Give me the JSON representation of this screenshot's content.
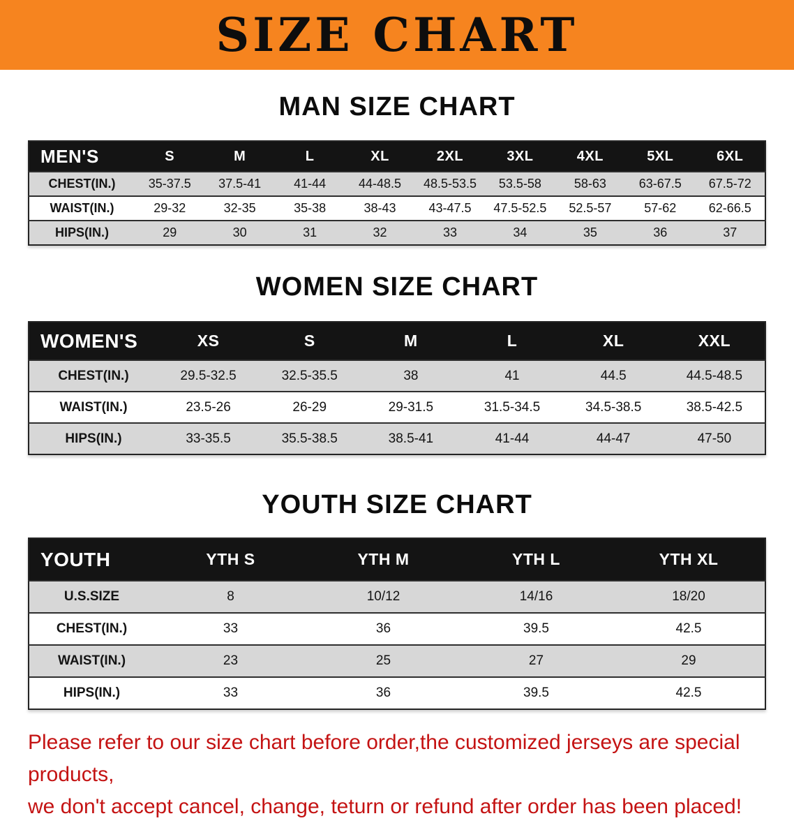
{
  "banner": {
    "title": "SIZE CHART",
    "bg_color": "#f6841f"
  },
  "sections": [
    {
      "id": "men",
      "heading": "MAN SIZE CHART",
      "table": {
        "header": [
          "MEN'S",
          "S",
          "M",
          "L",
          "XL",
          "2XL",
          "3XL",
          "4XL",
          "5XL",
          "6XL"
        ],
        "rows": [
          [
            "CHEST(IN.)",
            "35-37.5",
            "37.5-41",
            "41-44",
            "44-48.5",
            "48.5-53.5",
            "53.5-58",
            "58-63",
            "63-67.5",
            "67.5-72"
          ],
          [
            "WAIST(IN.)",
            "29-32",
            "32-35",
            "35-38",
            "38-43",
            "43-47.5",
            "47.5-52.5",
            "52.5-57",
            "57-62",
            "62-66.5"
          ],
          [
            "HIPS(IN.)",
            "29",
            "30",
            "31",
            "32",
            "33",
            "34",
            "35",
            "36",
            "37"
          ]
        ]
      }
    },
    {
      "id": "women",
      "heading": "WOMEN SIZE CHART",
      "table": {
        "header": [
          "WOMEN'S",
          "XS",
          "S",
          "M",
          "L",
          "XL",
          "XXL"
        ],
        "rows": [
          [
            "CHEST(IN.)",
            "29.5-32.5",
            "32.5-35.5",
            "38",
            "41",
            "44.5",
            "44.5-48.5"
          ],
          [
            "WAIST(IN.)",
            "23.5-26",
            "26-29",
            "29-31.5",
            "31.5-34.5",
            "34.5-38.5",
            "38.5-42.5"
          ],
          [
            "HIPS(IN.)",
            "33-35.5",
            "35.5-38.5",
            "38.5-41",
            "41-44",
            "44-47",
            "47-50"
          ]
        ]
      }
    },
    {
      "id": "youth",
      "heading": "YOUTH SIZE CHART",
      "table": {
        "header": [
          "YOUTH",
          "YTH S",
          "YTH M",
          "YTH L",
          "YTH XL"
        ],
        "rows": [
          [
            "U.S.SIZE",
            "8",
            "10/12",
            "14/16",
            "18/20"
          ],
          [
            "CHEST(IN.)",
            "33",
            "36",
            "39.5",
            "42.5"
          ],
          [
            "WAIST(IN.)",
            "23",
            "25",
            "27",
            "29"
          ],
          [
            "HIPS(IN.)",
            "33",
            "36",
            "39.5",
            "42.5"
          ]
        ]
      }
    }
  ],
  "footer": {
    "line1": "Please refer to our size chart before order,the customized jerseys are special products,",
    "line2": "we don't accept cancel, change, teturn or refund after order has been placed!",
    "text_color": "#c41313"
  }
}
